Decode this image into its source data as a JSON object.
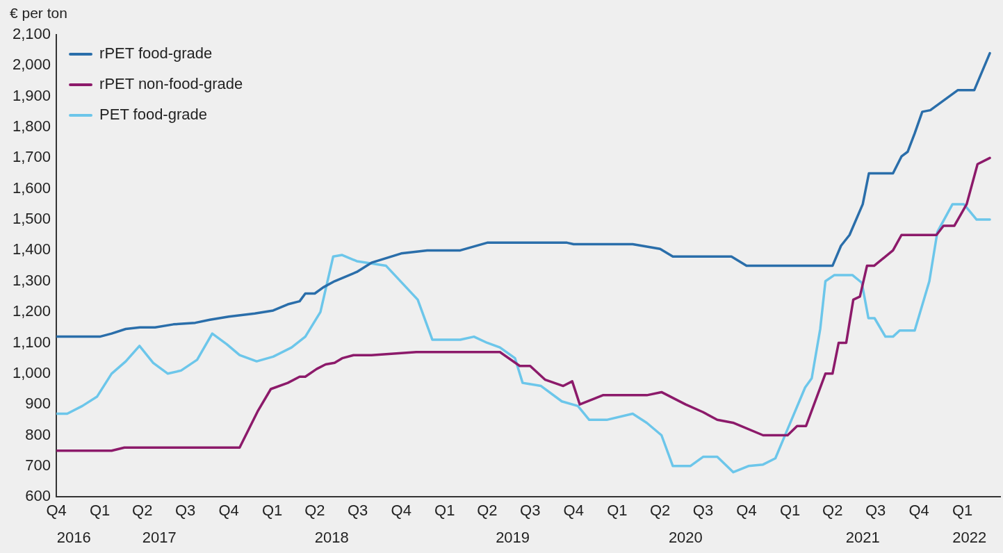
{
  "chart_data": {
    "type": "line",
    "ylabel": "€ per ton",
    "xlim": [
      "2016-10-01",
      "2022-03-22"
    ],
    "xticks": [
      {
        "value": "2016-10-01",
        "label": "Q4"
      },
      {
        "value": "2017-01-01",
        "label": "Q1"
      },
      {
        "value": "2017-04-01",
        "label": "Q2"
      },
      {
        "value": "2017-07-01",
        "label": "Q3"
      },
      {
        "value": "2017-10-01",
        "label": "Q4"
      },
      {
        "value": "2018-01-01",
        "label": "Q1"
      },
      {
        "value": "2018-04-01",
        "label": "Q2"
      },
      {
        "value": "2018-07-01",
        "label": "Q3"
      },
      {
        "value": "2018-10-01",
        "label": "Q4"
      },
      {
        "value": "2019-01-01",
        "label": "Q1"
      },
      {
        "value": "2019-04-01",
        "label": "Q2"
      },
      {
        "value": "2019-07-01",
        "label": "Q3"
      },
      {
        "value": "2019-10-01",
        "label": "Q4"
      },
      {
        "value": "2020-01-01",
        "label": "Q1"
      },
      {
        "value": "2020-04-01",
        "label": "Q2"
      },
      {
        "value": "2020-07-01",
        "label": "Q3"
      },
      {
        "value": "2020-10-01",
        "label": "Q4"
      },
      {
        "value": "2021-01-01",
        "label": "Q1"
      },
      {
        "value": "2021-04-01",
        "label": "Q2"
      },
      {
        "value": "2021-07-01",
        "label": "Q3"
      },
      {
        "value": "2021-10-01",
        "label": "Q4"
      },
      {
        "value": "2022-01-01",
        "label": "Q1"
      }
    ],
    "x2lim": [
      "2016-10-01",
      "2022-03-22"
    ],
    "x2ticks": [
      {
        "value": "2016-11-07",
        "label": "2016"
      },
      {
        "value": "2017-05-07",
        "label": "2017"
      },
      {
        "value": "2018-05-07",
        "label": "2018"
      },
      {
        "value": "2019-05-25",
        "label": "2019"
      },
      {
        "value": "2020-05-25",
        "label": "2020"
      },
      {
        "value": "2021-06-04",
        "label": "2021"
      },
      {
        "value": "2022-01-16",
        "label": "2022"
      }
    ],
    "ylim": [
      600,
      2100
    ],
    "yticks": [
      600,
      700,
      800,
      900,
      {
        "value": 1000,
        "label": "1,000"
      },
      {
        "value": 1100,
        "label": "1,100"
      },
      {
        "value": 1200,
        "label": "1,200"
      },
      {
        "value": 1300,
        "label": "1,300"
      },
      {
        "value": 1400,
        "label": "1,400"
      },
      {
        "value": 1500,
        "label": "1,500"
      },
      {
        "value": 1600,
        "label": "1,600"
      },
      {
        "value": 1700,
        "label": "1,700"
      },
      {
        "value": 1800,
        "label": "1,800"
      },
      {
        "value": 1900,
        "label": "1,900"
      },
      {
        "value": 2000,
        "label": "2,000"
      },
      {
        "value": 2100,
        "label": "2,100"
      }
    ],
    "grid": false,
    "legend": "top left",
    "marker": "none",
    "line_style": "solid",
    "series": [
      {
        "name": "rPET food-grade",
        "color": "#2a6eaa",
        "x": [
          "2016-10-01",
          "2017-01-01",
          "2017-01-26",
          "2017-02-25",
          "2017-03-27",
          "2017-04-28",
          "2017-06-06",
          "2017-07-22",
          "2017-08-22",
          "2017-10-01",
          "2017-11-25",
          "2018-01-03",
          "2018-02-03",
          "2018-02-28",
          "2018-03-12",
          "2018-04-01",
          "2018-04-19",
          "2018-05-13",
          "2018-06-29",
          "2018-07-30",
          "2018-10-01",
          "2018-11-25",
          "2019-02-03",
          "2019-04-01",
          "2019-09-17",
          "2019-10-01",
          "2020-02-03",
          "2020-04-01",
          "2020-04-28",
          "2020-08-30",
          "2020-10-01",
          "2021-04-01",
          "2021-04-19",
          "2021-05-07",
          "2021-06-04",
          "2021-06-17",
          "2021-08-07",
          "2021-08-25",
          "2021-09-07",
          "2021-09-22",
          "2021-10-08",
          "2021-10-25",
          "2021-12-22",
          "2022-01-26",
          "2022-02-28"
        ],
        "values": [
          1120,
          1120,
          1130,
          1145,
          1150,
          1150,
          1160,
          1165,
          1175,
          1185,
          1195,
          1205,
          1225,
          1235,
          1260,
          1260,
          1280,
          1300,
          1330,
          1360,
          1390,
          1400,
          1400,
          1425,
          1425,
          1420,
          1420,
          1405,
          1380,
          1380,
          1350,
          1350,
          1415,
          1450,
          1550,
          1650,
          1650,
          1705,
          1720,
          1780,
          1850,
          1855,
          1920,
          1920,
          2040
        ]
      },
      {
        "name": "rPET non-food-grade",
        "color": "#8c1a6a",
        "x": [
          "2016-10-01",
          "2017-01-26",
          "2017-02-22",
          "2017-10-24",
          "2017-12-02",
          "2017-12-29",
          "2018-02-03",
          "2018-02-28",
          "2018-03-12",
          "2018-04-05",
          "2018-04-24",
          "2018-05-13",
          "2018-05-29",
          "2018-06-22",
          "2018-07-30",
          "2018-11-02",
          "2019-04-01",
          "2019-04-28",
          "2019-06-09",
          "2019-07-01",
          "2019-08-02",
          "2019-09-09",
          "2019-09-28",
          "2019-10-14",
          "2019-12-02",
          "2020-03-04",
          "2020-04-04",
          "2020-05-25",
          "2020-07-01",
          "2020-07-31",
          "2020-09-04",
          "2020-11-05",
          "2020-12-27",
          "2021-01-16",
          "2021-02-04",
          "2021-03-17",
          "2021-04-01",
          "2021-04-14",
          "2021-04-30",
          "2021-05-15",
          "2021-05-29",
          "2021-06-13",
          "2021-06-28",
          "2021-08-07",
          "2021-08-25",
          "2021-11-07",
          "2021-11-22",
          "2021-12-15",
          "2022-01-10",
          "2022-02-02",
          "2022-02-28"
        ],
        "values": [
          750,
          750,
          760,
          760,
          880,
          950,
          970,
          990,
          990,
          1015,
          1030,
          1035,
          1050,
          1060,
          1060,
          1070,
          1070,
          1070,
          1025,
          1025,
          980,
          960,
          975,
          900,
          930,
          930,
          940,
          900,
          875,
          850,
          840,
          800,
          800,
          830,
          830,
          1000,
          1000,
          1100,
          1100,
          1240,
          1250,
          1350,
          1350,
          1400,
          1450,
          1450,
          1480,
          1480,
          1550,
          1680,
          1700
        ]
      },
      {
        "name": "PET food-grade",
        "color": "#6cc6ea",
        "x": [
          "2016-10-01",
          "2016-10-24",
          "2016-11-25",
          "2016-12-26",
          "2017-01-26",
          "2017-02-25",
          "2017-03-26",
          "2017-04-24",
          "2017-05-25",
          "2017-06-22",
          "2017-07-26",
          "2017-08-27",
          "2017-09-27",
          "2017-10-24",
          "2017-11-29",
          "2018-01-03",
          "2018-02-11",
          "2018-03-12",
          "2018-04-13",
          "2018-05-10",
          "2018-05-29",
          "2018-06-29",
          "2018-08-30",
          "2018-11-05",
          "2018-12-06",
          "2019-02-03",
          "2019-03-04",
          "2019-04-01",
          "2019-04-28",
          "2019-05-30",
          "2019-06-15",
          "2019-07-24",
          "2019-09-06",
          "2019-10-10",
          "2019-11-03",
          "2019-12-10",
          "2020-02-03",
          "2020-03-04",
          "2020-04-04",
          "2020-04-28",
          "2020-06-04",
          "2020-07-01",
          "2020-07-31",
          "2020-09-03",
          "2020-10-05",
          "2020-11-05",
          "2020-12-01",
          "2020-12-27",
          "2021-02-02",
          "2021-02-16",
          "2021-03-06",
          "2021-03-17",
          "2021-04-05",
          "2021-05-13",
          "2021-06-02",
          "2021-06-16",
          "2021-06-29",
          "2021-07-22",
          "2021-08-07",
          "2021-08-21",
          "2021-09-22",
          "2021-10-23",
          "2021-11-09",
          "2021-12-11",
          "2022-01-04",
          "2022-01-31",
          "2022-02-28"
        ],
        "values": [
          870,
          870,
          895,
          925,
          1000,
          1040,
          1090,
          1035,
          1000,
          1010,
          1045,
          1130,
          1095,
          1060,
          1040,
          1055,
          1085,
          1120,
          1200,
          1380,
          1385,
          1365,
          1350,
          1240,
          1110,
          1110,
          1120,
          1100,
          1085,
          1050,
          970,
          960,
          910,
          895,
          850,
          850,
          870,
          840,
          800,
          700,
          700,
          730,
          730,
          680,
          700,
          705,
          725,
          820,
          955,
          985,
          1145,
          1300,
          1320,
          1320,
          1295,
          1180,
          1180,
          1120,
          1120,
          1140,
          1140,
          1300,
          1460,
          1550,
          1550,
          1500,
          1500
        ]
      }
    ]
  }
}
